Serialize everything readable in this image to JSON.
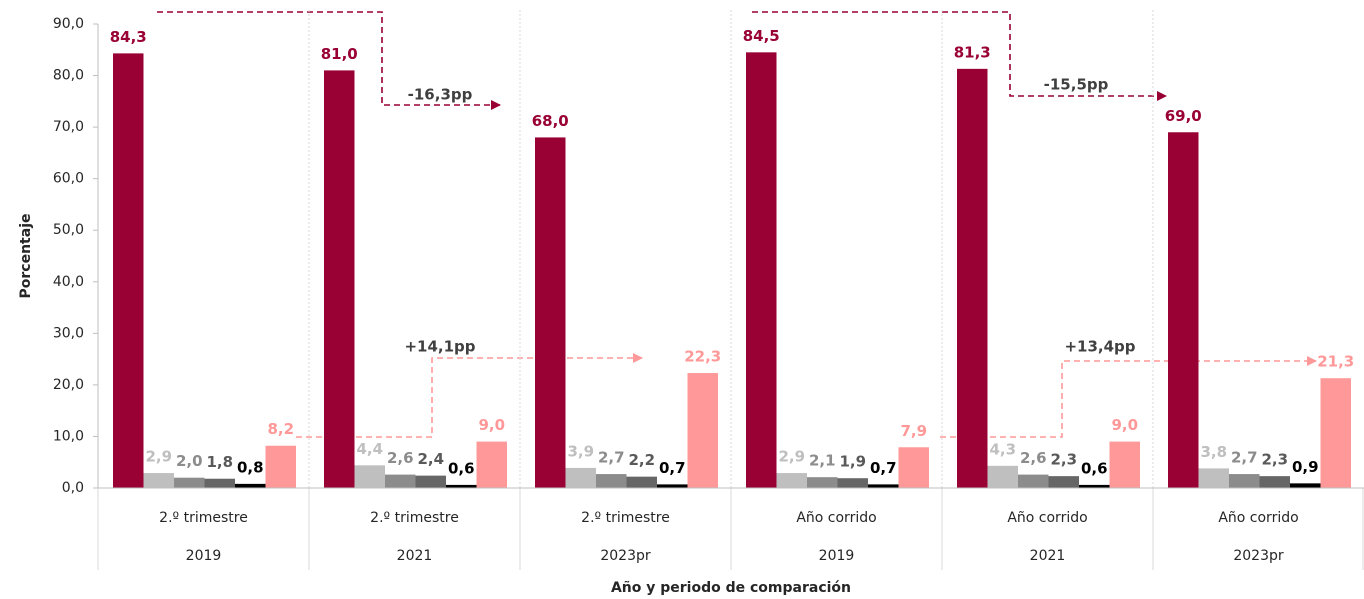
{
  "chart_data": {
    "type": "bar",
    "y_label": "Porcentaje",
    "x_label": "Año y periodo de comparación",
    "categories": [
      "2.º trimestre",
      "2.º trimestre",
      "2.º trimestre",
      "Año corrido",
      "Año corrido",
      "Año corrido"
    ],
    "category_years": [
      "2019",
      "2021",
      "2023pr",
      "2019",
      "2021",
      "2023pr"
    ],
    "series": [
      {
        "color": "#990033",
        "label_color": "#990033",
        "values": [
          84.3,
          81.0,
          68.0,
          84.5,
          81.3,
          69.0
        ],
        "value_labels": [
          "84,3",
          "81,0",
          "68,0",
          "84,5",
          "81,3",
          "69,0"
        ]
      },
      {
        "color": "#bfbfbf",
        "label_color": "#bfbfbf",
        "values": [
          2.9,
          4.4,
          3.9,
          2.9,
          4.3,
          3.8
        ],
        "value_labels": [
          "2,9",
          "4,4",
          "3,9",
          "2,9",
          "4,3",
          "3,8"
        ]
      },
      {
        "color": "#8c8c8c",
        "label_color": "#8c8c8c",
        "values": [
          2.0,
          2.6,
          2.7,
          2.1,
          2.6,
          2.7
        ],
        "value_labels": [
          "2,0",
          "2,6",
          "2,7",
          "2,1",
          "2,6",
          "2,7"
        ]
      },
      {
        "color": "#666666",
        "label_color": "#595959",
        "values": [
          1.8,
          2.4,
          2.2,
          1.9,
          2.3,
          2.3
        ],
        "value_labels": [
          "1,8",
          "2,4",
          "2,2",
          "1,9",
          "2,3",
          "2,3"
        ]
      },
      {
        "color": "#000000",
        "label_color": "#000000",
        "values": [
          0.8,
          0.6,
          0.7,
          0.7,
          0.6,
          0.9
        ],
        "value_labels": [
          "0,8",
          "0,6",
          "0,7",
          "0,7",
          "0,6",
          "0,9"
        ]
      },
      {
        "color": "#ff9999",
        "label_color": "#ff9999",
        "values": [
          8.2,
          9.0,
          22.3,
          7.9,
          9.0,
          21.3
        ],
        "value_labels": [
          "8,2",
          "9,0",
          "22,3",
          "7,9",
          "9,0",
          "21,3"
        ]
      }
    ],
    "annotations": [
      "-16,3pp",
      "+14,1pp",
      "-15,5pp",
      "+13,4pp"
    ],
    "ylim": [
      0,
      90
    ],
    "yticks": [
      {
        "value": 0,
        "label": "0,0"
      },
      {
        "value": 10,
        "label": "10,0"
      },
      {
        "value": 20,
        "label": "20,0"
      },
      {
        "value": 30,
        "label": "30,0"
      },
      {
        "value": 40,
        "label": "40,0"
      },
      {
        "value": 50,
        "label": "50,0"
      },
      {
        "value": 60,
        "label": "60,0"
      },
      {
        "value": 70,
        "label": "70,0"
      },
      {
        "value": 80,
        "label": "80,0"
      },
      {
        "value": 90,
        "label": "90,0"
      }
    ],
    "grid": false
  }
}
